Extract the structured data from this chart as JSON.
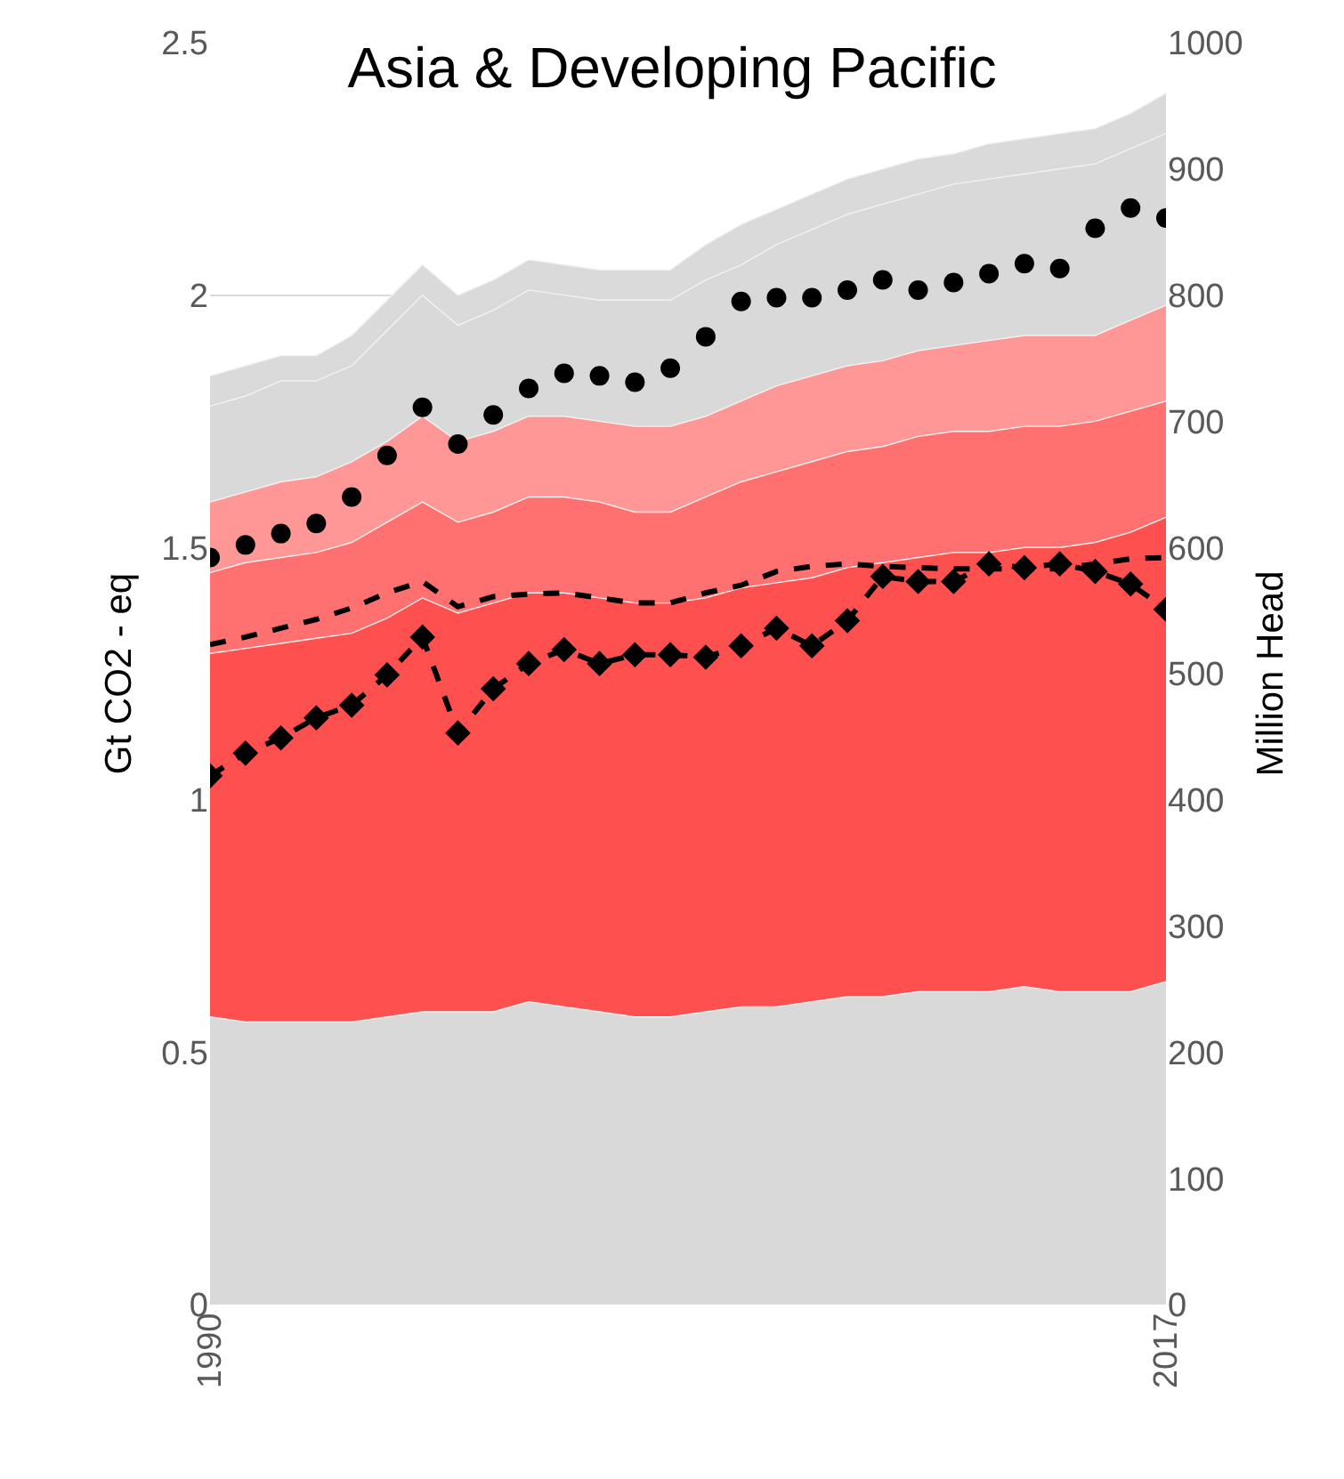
{
  "chart_data": {
    "type": "area",
    "title": "Asia & Developing Pacific",
    "ylabel": "Gt CO2 - eq",
    "y2label": "Million Head",
    "x": [
      1990,
      1991,
      1992,
      1993,
      1994,
      1995,
      1996,
      1997,
      1998,
      1999,
      2000,
      2001,
      2002,
      2003,
      2004,
      2005,
      2006,
      2007,
      2008,
      2009,
      2010,
      2011,
      2012,
      2013,
      2014,
      2015,
      2016,
      2017
    ],
    "stacked": true,
    "grid": "y",
    "xlim": [
      1990,
      2017
    ],
    "xticks": [
      1990,
      2017
    ],
    "ylim": [
      0,
      2.5
    ],
    "yticks": [
      0,
      0.5,
      1,
      1.5,
      2,
      2.5
    ],
    "y2lim": [
      0,
      1000
    ],
    "y2ticks": [
      0,
      100,
      200,
      300,
      400,
      500,
      600,
      700,
      800,
      900,
      1000
    ],
    "series": [
      {
        "color": "#d9d9d9",
        "values": [
          0.57,
          0.56,
          0.56,
          0.56,
          0.56,
          0.57,
          0.58,
          0.58,
          0.58,
          0.6,
          0.59,
          0.58,
          0.57,
          0.57,
          0.58,
          0.59,
          0.59,
          0.6,
          0.61,
          0.61,
          0.62,
          0.62,
          0.62,
          0.63,
          0.62,
          0.62,
          0.62,
          0.64
        ]
      },
      {
        "color": "#ff5050",
        "values": [
          0.72,
          0.74,
          0.75,
          0.76,
          0.77,
          0.79,
          0.82,
          0.79,
          0.81,
          0.81,
          0.82,
          0.82,
          0.82,
          0.82,
          0.82,
          0.83,
          0.84,
          0.84,
          0.85,
          0.86,
          0.86,
          0.87,
          0.87,
          0.87,
          0.88,
          0.89,
          0.91,
          0.92
        ]
      },
      {
        "color": "#ff7171",
        "values": [
          0.16,
          0.17,
          0.17,
          0.17,
          0.18,
          0.19,
          0.19,
          0.18,
          0.18,
          0.19,
          0.19,
          0.19,
          0.18,
          0.18,
          0.2,
          0.21,
          0.22,
          0.23,
          0.23,
          0.23,
          0.24,
          0.24,
          0.24,
          0.24,
          0.24,
          0.24,
          0.24,
          0.23
        ]
      },
      {
        "color": "#ff9797",
        "values": [
          0.14,
          0.14,
          0.15,
          0.15,
          0.16,
          0.16,
          0.17,
          0.16,
          0.16,
          0.16,
          0.16,
          0.16,
          0.17,
          0.17,
          0.16,
          0.16,
          0.17,
          0.17,
          0.17,
          0.17,
          0.17,
          0.17,
          0.18,
          0.18,
          0.18,
          0.17,
          0.18,
          0.19
        ]
      },
      {
        "color": "#d9d9d9",
        "values": [
          0.19,
          0.19,
          0.2,
          0.19,
          0.19,
          0.22,
          0.24,
          0.23,
          0.24,
          0.25,
          0.24,
          0.24,
          0.25,
          0.25,
          0.27,
          0.27,
          0.28,
          0.29,
          0.3,
          0.31,
          0.31,
          0.32,
          0.32,
          0.32,
          0.33,
          0.34,
          0.34,
          0.34
        ]
      },
      {
        "color": "#dadada",
        "values": [
          0.06,
          0.06,
          0.05,
          0.05,
          0.06,
          0.06,
          0.06,
          0.06,
          0.06,
          0.06,
          0.06,
          0.06,
          0.06,
          0.06,
          0.07,
          0.08,
          0.07,
          0.07,
          0.07,
          0.07,
          0.07,
          0.06,
          0.07,
          0.07,
          0.07,
          0.07,
          0.07,
          0.08
        ]
      },
      {
        "type": "scatter",
        "axis": "y2",
        "marker": "circle",
        "color": "#000000",
        "values": [
          592,
          602,
          611,
          619,
          640,
          673,
          711,
          682,
          705,
          726,
          738,
          736,
          731,
          742,
          767,
          795,
          798,
          798,
          804,
          812,
          804,
          810,
          817,
          825,
          821,
          853,
          869,
          861
        ]
      },
      {
        "type": "line",
        "axis": "y2",
        "marker": "none",
        "line_style": "dashed",
        "color": "#000000",
        "values": [
          523,
          529,
          536,
          543,
          552,
          564,
          573,
          553,
          561,
          563,
          564,
          560,
          556,
          556,
          564,
          570,
          581,
          585,
          587,
          585,
          584,
          583,
          583,
          583,
          583,
          587,
          591,
          592
        ]
      },
      {
        "type": "line",
        "axis": "y2",
        "marker": "diamond",
        "line_style": "dashed",
        "color": "#000000",
        "values": [
          419,
          437,
          449,
          465,
          475,
          499,
          529,
          453,
          488,
          508,
          519,
          508,
          515,
          515,
          513,
          522,
          536,
          522,
          542,
          577,
          573,
          573,
          587,
          584,
          587,
          581,
          571,
          551
        ]
      }
    ]
  }
}
